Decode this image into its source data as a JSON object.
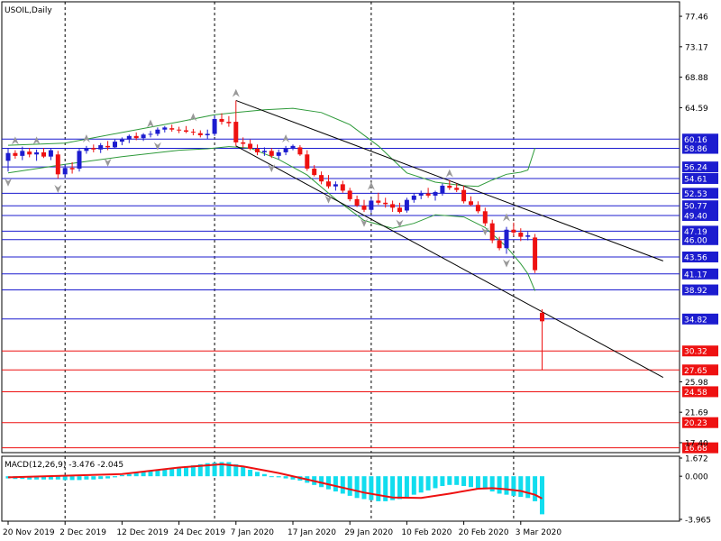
{
  "chart_data": {
    "type": "candlestick",
    "symbol_title": "USOIL,Daily",
    "price_axis_ticks": [
      "77.46",
      "73.17",
      "68.88",
      "64.59",
      "25.98",
      "21.69",
      "17.40"
    ],
    "price_range": [
      16.0,
      79.5
    ],
    "date_ticks": [
      {
        "i": 0,
        "label": "20 Nov 2019"
      },
      {
        "i": 8,
        "label": "2 Dec 2019"
      },
      {
        "i": 16,
        "label": "12 Dec 2019"
      },
      {
        "i": 24,
        "label": "24 Dec 2019"
      },
      {
        "i": 32,
        "label": "7 Jan 2020"
      },
      {
        "i": 40,
        "label": "17 Jan 2020"
      },
      {
        "i": 48,
        "label": "29 Jan 2020"
      },
      {
        "i": 56,
        "label": "10 Feb 2020"
      },
      {
        "i": 64,
        "label": "20 Feb 2020"
      },
      {
        "i": 72,
        "label": "3 Mar 2020"
      }
    ],
    "vertical_gridlines_at": [
      8,
      29,
      51,
      71
    ],
    "levels_blue": [
      {
        "label": "60.16",
        "value": 60.16
      },
      {
        "label": "58.86",
        "value": 58.86
      },
      {
        "label": "56.24",
        "value": 56.24
      },
      {
        "label": "54.61",
        "value": 54.61
      },
      {
        "label": "52.53",
        "value": 52.53
      },
      {
        "label": "50.77",
        "value": 50.77
      },
      {
        "label": "49.40",
        "value": 49.4
      },
      {
        "label": "47.19",
        "value": 47.19
      },
      {
        "label": "46.00",
        "value": 46.0
      },
      {
        "label": "43.56",
        "value": 43.56
      },
      {
        "label": "41.17",
        "value": 41.17
      },
      {
        "label": "38.92",
        "value": 38.92
      },
      {
        "label": "34.82",
        "value": 34.82
      }
    ],
    "levels_red": [
      {
        "label": "30.32",
        "value": 30.32
      },
      {
        "label": "27.65",
        "value": 27.65
      },
      {
        "label": "24.58",
        "value": 24.58
      },
      {
        "label": "20.23",
        "value": 20.23
      },
      {
        "label": "16.68",
        "value": 16.68
      }
    ],
    "trendlines": [
      {
        "from": [
          32,
          65.6
        ],
        "to": [
          92,
          43.0
        ]
      },
      {
        "from": [
          32,
          59.2
        ],
        "to": [
          92,
          26.6
        ]
      }
    ],
    "candles": [
      [
        57.1,
        58.9,
        55.6,
        58.2
      ],
      [
        58.2,
        58.6,
        57.4,
        57.8
      ],
      [
        57.8,
        59.1,
        57.2,
        58.5
      ],
      [
        58.4,
        58.9,
        57.6,
        58.0
      ],
      [
        58.0,
        58.7,
        57.1,
        58.3
      ],
      [
        58.3,
        58.9,
        57.5,
        57.7
      ],
      [
        57.7,
        58.8,
        57.2,
        58.6
      ],
      [
        58.0,
        58.5,
        54.6,
        55.2
      ],
      [
        55.2,
        56.6,
        54.8,
        56.1
      ],
      [
        56.1,
        56.9,
        55.3,
        55.9
      ],
      [
        56.0,
        58.8,
        55.6,
        58.5
      ],
      [
        58.5,
        59.2,
        58.1,
        58.9
      ],
      [
        58.9,
        59.4,
        58.3,
        58.7
      ],
      [
        58.7,
        59.6,
        58.2,
        59.3
      ],
      [
        59.2,
        59.9,
        58.6,
        59.0
      ],
      [
        59.0,
        60.1,
        58.8,
        59.8
      ],
      [
        59.8,
        60.4,
        59.3,
        60.1
      ],
      [
        60.1,
        60.8,
        59.6,
        60.6
      ],
      [
        60.6,
        61.1,
        60.0,
        60.3
      ],
      [
        60.3,
        61.0,
        59.9,
        60.8
      ],
      [
        60.8,
        61.3,
        60.4,
        60.9
      ],
      [
        60.9,
        61.8,
        60.6,
        61.5
      ],
      [
        61.5,
        62.0,
        61.1,
        61.8
      ],
      [
        61.7,
        62.2,
        61.2,
        61.5
      ],
      [
        61.5,
        61.9,
        61.0,
        61.4
      ],
      [
        61.4,
        62.0,
        61.0,
        61.2
      ],
      [
        61.2,
        61.6,
        60.7,
        61.1
      ],
      [
        61.0,
        61.4,
        60.4,
        60.7
      ],
      [
        60.7,
        61.5,
        60.2,
        60.9
      ],
      [
        60.9,
        63.5,
        60.6,
        63.0
      ],
      [
        63.0,
        63.8,
        62.2,
        62.6
      ],
      [
        62.6,
        63.4,
        61.9,
        62.4
      ],
      [
        62.6,
        65.6,
        59.2,
        59.7
      ],
      [
        59.7,
        60.4,
        58.9,
        59.5
      ],
      [
        59.5,
        60.1,
        58.6,
        58.8
      ],
      [
        58.8,
        59.4,
        57.9,
        58.3
      ],
      [
        58.3,
        59.0,
        57.8,
        58.5
      ],
      [
        58.5,
        58.9,
        57.5,
        57.8
      ],
      [
        57.8,
        58.7,
        57.3,
        58.3
      ],
      [
        58.3,
        59.2,
        57.9,
        58.9
      ],
      [
        58.9,
        59.4,
        58.6,
        59.2
      ],
      [
        59.0,
        59.3,
        57.8,
        58.0
      ],
      [
        58.0,
        58.6,
        55.7,
        56.0
      ],
      [
        56.0,
        56.5,
        54.9,
        55.1
      ],
      [
        55.1,
        55.6,
        53.8,
        54.2
      ],
      [
        54.2,
        55.1,
        53.2,
        53.5
      ],
      [
        53.5,
        54.2,
        52.9,
        53.8
      ],
      [
        53.8,
        54.3,
        52.6,
        52.9
      ],
      [
        52.9,
        53.3,
        51.4,
        51.7
      ],
      [
        51.7,
        52.2,
        50.6,
        50.8
      ],
      [
        50.8,
        51.6,
        49.9,
        50.2
      ],
      [
        50.2,
        51.8,
        49.8,
        51.5
      ],
      [
        51.5,
        52.6,
        50.9,
        51.2
      ],
      [
        51.2,
        51.9,
        50.5,
        51.0
      ],
      [
        51.0,
        51.5,
        49.9,
        50.5
      ],
      [
        50.5,
        51.2,
        49.7,
        49.9
      ],
      [
        50.1,
        51.9,
        49.8,
        51.6
      ],
      [
        51.6,
        52.5,
        51.2,
        52.2
      ],
      [
        52.2,
        52.9,
        51.7,
        52.5
      ],
      [
        52.5,
        53.3,
        51.9,
        52.2
      ],
      [
        52.2,
        52.9,
        51.5,
        52.7
      ],
      [
        52.5,
        53.9,
        52.2,
        53.6
      ],
      [
        53.6,
        54.4,
        53.0,
        53.3
      ],
      [
        53.3,
        53.9,
        52.7,
        53.0
      ],
      [
        53.0,
        53.6,
        51.1,
        51.4
      ],
      [
        51.4,
        52.1,
        50.7,
        50.9
      ],
      [
        50.9,
        51.4,
        49.7,
        50.0
      ],
      [
        50.0,
        50.5,
        47.9,
        48.3
      ],
      [
        48.3,
        48.8,
        45.5,
        45.9
      ],
      [
        45.9,
        46.4,
        44.5,
        44.8
      ],
      [
        44.8,
        47.8,
        44.0,
        47.4
      ],
      [
        47.4,
        48.4,
        46.5,
        47.0
      ],
      [
        47.0,
        47.6,
        45.8,
        46.4
      ],
      [
        46.4,
        47.1,
        45.9,
        46.6
      ],
      [
        46.3,
        46.8,
        41.3,
        41.7
      ],
      [
        35.7,
        36.2,
        27.6,
        34.5
      ]
    ],
    "bollinger_upper": [
      [
        0,
        59.3
      ],
      [
        8,
        59.6
      ],
      [
        16,
        61.1
      ],
      [
        24,
        62.6
      ],
      [
        29,
        63.6
      ],
      [
        32,
        63.9
      ],
      [
        36,
        64.3
      ],
      [
        40,
        64.5
      ],
      [
        44,
        63.9
      ],
      [
        48,
        62.2
      ],
      [
        52,
        59.2
      ],
      [
        56,
        55.4
      ],
      [
        60,
        54.1
      ],
      [
        64,
        53.6
      ],
      [
        66,
        53.5
      ],
      [
        68,
        54.4
      ],
      [
        70,
        55.2
      ],
      [
        72,
        55.5
      ],
      [
        73,
        55.8
      ],
      [
        74,
        58.9
      ]
    ],
    "bollinger_lower": [
      [
        0,
        55.4
      ],
      [
        8,
        56.6
      ],
      [
        16,
        57.7
      ],
      [
        24,
        58.6
      ],
      [
        28,
        58.8
      ],
      [
        31,
        59.1
      ],
      [
        34,
        58.9
      ],
      [
        38,
        57.3
      ],
      [
        42,
        55.1
      ],
      [
        46,
        51.7
      ],
      [
        50,
        48.7
      ],
      [
        54,
        47.6
      ],
      [
        57,
        48.3
      ],
      [
        60,
        49.5
      ],
      [
        64,
        49.2
      ],
      [
        67,
        47.7
      ],
      [
        70,
        45.0
      ],
      [
        72,
        42.6
      ],
      [
        73,
        41.2
      ],
      [
        74,
        38.8
      ]
    ],
    "fractals_up": [
      [
        1,
        59.0
      ],
      [
        4,
        59.0
      ],
      [
        11,
        59.3
      ],
      [
        20,
        61.4
      ],
      [
        26,
        62.3
      ],
      [
        32,
        65.7
      ],
      [
        39,
        59.3
      ],
      [
        51,
        52.6
      ],
      [
        62,
        54.4
      ],
      [
        70,
        48.2
      ]
    ],
    "fractals_down": [
      [
        0,
        55.0
      ],
      [
        7,
        54.1
      ],
      [
        14,
        57.8
      ],
      [
        21,
        60.1
      ],
      [
        37,
        57.0
      ],
      [
        45,
        52.6
      ],
      [
        50,
        49.3
      ],
      [
        55,
        49.2
      ],
      [
        67,
        48.1
      ],
      [
        70,
        43.6
      ]
    ],
    "macd": {
      "title": "MACD(12,26,9) -3.476 -2.045",
      "axis_labels": [
        "1.672",
        "0.000",
        "-3.965"
      ],
      "range": [
        -3.965,
        1.672
      ],
      "histogram": [
        -0.2,
        -0.25,
        -0.25,
        -0.3,
        -0.3,
        -0.3,
        -0.3,
        -0.3,
        -0.35,
        -0.35,
        -0.35,
        -0.3,
        -0.3,
        -0.25,
        -0.2,
        -0.1,
        0.1,
        0.2,
        0.3,
        0.4,
        0.5,
        0.6,
        0.65,
        0.7,
        0.8,
        0.9,
        1.0,
        1.1,
        1.2,
        1.25,
        1.3,
        1.3,
        1.1,
        0.9,
        0.6,
        0.4,
        0.2,
        0.0,
        -0.1,
        -0.2,
        -0.3,
        -0.4,
        -0.6,
        -0.8,
        -1.0,
        -1.2,
        -1.4,
        -1.6,
        -1.8,
        -2.0,
        -2.1,
        -2.2,
        -2.3,
        -2.3,
        -2.2,
        -2.1,
        -1.9,
        -1.7,
        -1.5,
        -1.3,
        -1.1,
        -0.9,
        -0.8,
        -0.8,
        -0.9,
        -1.0,
        -1.1,
        -1.2,
        -1.4,
        -1.6,
        -1.7,
        -1.8,
        -1.9,
        -2.0,
        -2.3,
        -3.5
      ],
      "signal": [
        [
          0,
          -0.1
        ],
        [
          16,
          0.2
        ],
        [
          24,
          0.8
        ],
        [
          30,
          1.1
        ],
        [
          33,
          0.9
        ],
        [
          38,
          0.3
        ],
        [
          44,
          -0.6
        ],
        [
          50,
          -1.5
        ],
        [
          54,
          -1.95
        ],
        [
          58,
          -2.0
        ],
        [
          62,
          -1.6
        ],
        [
          66,
          -1.15
        ],
        [
          68,
          -1.1
        ],
        [
          70,
          -1.2
        ],
        [
          72,
          -1.35
        ],
        [
          74,
          -1.7
        ],
        [
          75,
          -2.05
        ]
      ]
    }
  }
}
